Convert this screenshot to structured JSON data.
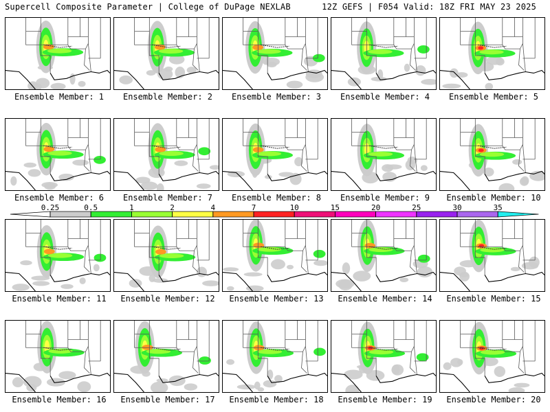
{
  "header": {
    "left": "Supercell Composite Parameter | College of DuPage NEXLAB",
    "right": "12Z GEFS | F054 Valid: 18Z FRI MAY 23 2025"
  },
  "colorbar": {
    "ticks": [
      "0.25",
      "0.5",
      "1",
      "2",
      "4",
      "7",
      "10",
      "15",
      "20",
      "25",
      "30",
      "35"
    ],
    "colors": [
      "#cccccc",
      "#33ee33",
      "#99ff33",
      "#ffff44",
      "#ff9922",
      "#ff2222",
      "#ee1177",
      "#ff00bb",
      "#ee33ff",
      "#9922ee",
      "#aa66ee",
      "#22eeee"
    ]
  },
  "members": [
    {
      "label": "Ensemble Member: 1"
    },
    {
      "label": "Ensemble Member: 2"
    },
    {
      "label": "Ensemble Member: 3"
    },
    {
      "label": "Ensemble Member: 4"
    },
    {
      "label": "Ensemble Member: 5"
    },
    {
      "label": "Ensemble Member: 6"
    },
    {
      "label": "Ensemble Member: 7"
    },
    {
      "label": "Ensemble Member: 8"
    },
    {
      "label": "Ensemble Member: 9"
    },
    {
      "label": "Ensemble Member: 10"
    },
    {
      "label": "Ensemble Member: 11"
    },
    {
      "label": "Ensemble Member: 12"
    },
    {
      "label": "Ensemble Member: 13"
    },
    {
      "label": "Ensemble Member: 14"
    },
    {
      "label": "Ensemble Member: 15"
    },
    {
      "label": "Ensemble Member: 16"
    },
    {
      "label": "Ensemble Member: 17"
    },
    {
      "label": "Ensemble Member: 18"
    },
    {
      "label": "Ensemble Member: 19"
    },
    {
      "label": "Ensemble Member: 20"
    }
  ]
}
